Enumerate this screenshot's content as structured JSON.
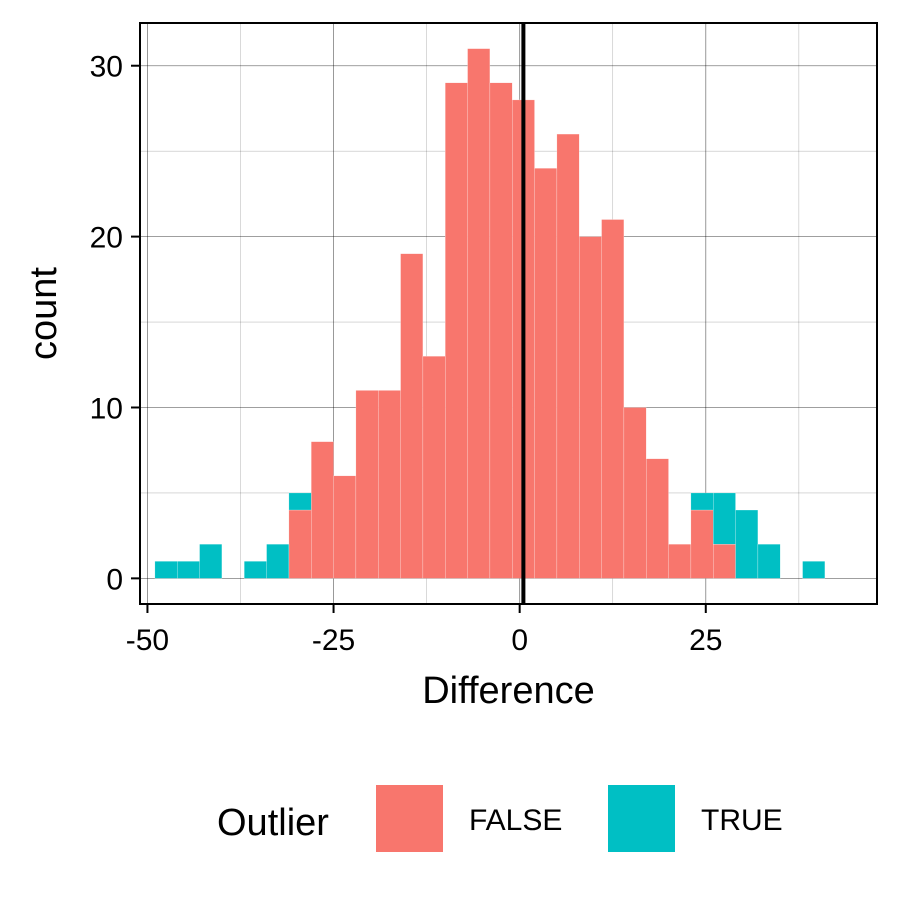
{
  "chart_data": {
    "type": "bar",
    "subtype": "stacked-histogram",
    "xlabel": "Difference",
    "ylabel": "count",
    "xlim": [
      -51,
      48
    ],
    "ylim": [
      -1.5,
      32.5
    ],
    "bin_width": 3,
    "xticks": [
      -50,
      -25,
      0,
      25
    ],
    "xtick_labels": [
      "-50",
      "-25",
      "0",
      "25"
    ],
    "yticks": [
      0,
      10,
      20,
      30
    ],
    "ytick_labels": [
      "0",
      "10",
      "20",
      "30"
    ],
    "grid": true,
    "vline": 0.5,
    "legend": {
      "title": "Outlier",
      "position": "bottom"
    },
    "series": [
      {
        "name": "FALSE",
        "color": "#F8766D",
        "bins": [
          [
            -29.5,
            4
          ],
          [
            -26.5,
            8
          ],
          [
            -23.5,
            6
          ],
          [
            -20.5,
            11
          ],
          [
            -17.5,
            11
          ],
          [
            -14.5,
            19
          ],
          [
            -11.5,
            13
          ],
          [
            -8.5,
            29
          ],
          [
            -5.5,
            31
          ],
          [
            -2.5,
            29
          ],
          [
            0.5,
            28
          ],
          [
            3.5,
            24
          ],
          [
            6.5,
            26
          ],
          [
            9.5,
            20
          ],
          [
            12.5,
            21
          ],
          [
            15.5,
            10
          ],
          [
            18.5,
            7
          ],
          [
            21.5,
            2
          ],
          [
            24.5,
            4
          ],
          [
            27.5,
            2
          ]
        ]
      },
      {
        "name": "TRUE",
        "color": "#00BFC4",
        "bins": [
          [
            -47.5,
            1
          ],
          [
            -44.5,
            1
          ],
          [
            -41.5,
            2
          ],
          [
            -35.5,
            1
          ],
          [
            -32.5,
            2
          ],
          [
            -29.5,
            1
          ],
          [
            24.5,
            1
          ],
          [
            27.5,
            3
          ],
          [
            30.5,
            4
          ],
          [
            33.5,
            2
          ],
          [
            39.5,
            1
          ]
        ]
      }
    ]
  }
}
